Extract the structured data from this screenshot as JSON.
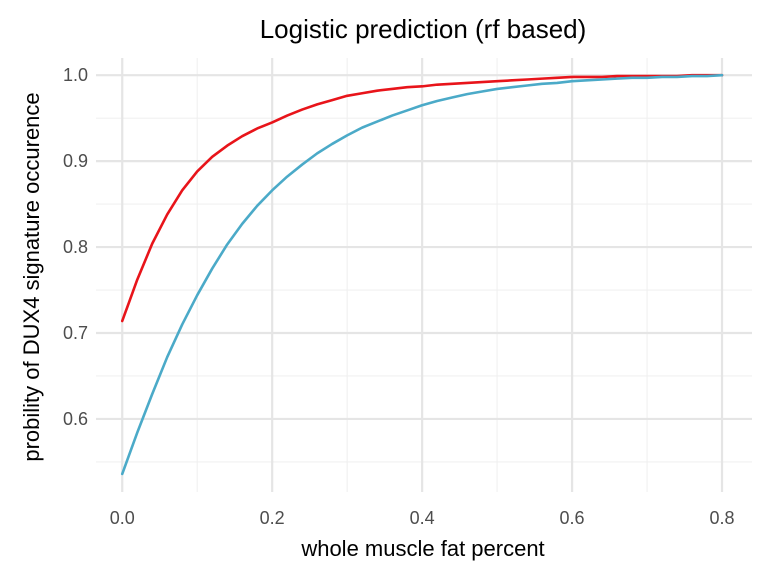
{
  "chart_data": {
    "type": "line",
    "title": "Logistic prediction (rf based)",
    "xlabel": "whole muscle fat percent",
    "ylabel": "probility of DUX4 signature occurence",
    "xlim": [
      -0.035,
      0.84
    ],
    "ylim": [
      0.515,
      1.02
    ],
    "x_ticks": [
      0.0,
      0.2,
      0.4,
      0.6,
      0.8
    ],
    "x_tick_labels": [
      "0.0",
      "0.2",
      "0.4",
      "0.6",
      "0.8"
    ],
    "y_ticks": [
      0.6,
      0.7,
      0.8,
      0.9,
      1.0
    ],
    "y_tick_labels": [
      "0.6",
      "0.7",
      "0.8",
      "0.9",
      "1.0"
    ],
    "grid": true,
    "legend": "none",
    "x": [
      0.0,
      0.02,
      0.04,
      0.06,
      0.08,
      0.1,
      0.12,
      0.14,
      0.16,
      0.18,
      0.2,
      0.22,
      0.24,
      0.26,
      0.28,
      0.3,
      0.32,
      0.34,
      0.36,
      0.38,
      0.4,
      0.42,
      0.44,
      0.46,
      0.48,
      0.5,
      0.52,
      0.54,
      0.56,
      0.58,
      0.6,
      0.62,
      0.64,
      0.66,
      0.68,
      0.7,
      0.72,
      0.74,
      0.76,
      0.78,
      0.8
    ],
    "series": [
      {
        "color": "#e8141a",
        "values": [
          0.714,
          0.762,
          0.804,
          0.838,
          0.866,
          0.888,
          0.905,
          0.918,
          0.929,
          0.938,
          0.945,
          0.953,
          0.96,
          0.966,
          0.971,
          0.976,
          0.979,
          0.982,
          0.984,
          0.986,
          0.987,
          0.989,
          0.99,
          0.991,
          0.992,
          0.993,
          0.994,
          0.995,
          0.996,
          0.997,
          0.998,
          0.998,
          0.998,
          0.999,
          0.999,
          0.999,
          0.999,
          0.999,
          1.0,
          1.0,
          1.0
        ]
      },
      {
        "color": "#4baac8",
        "values": [
          0.536,
          0.584,
          0.629,
          0.672,
          0.71,
          0.744,
          0.775,
          0.803,
          0.827,
          0.848,
          0.866,
          0.882,
          0.896,
          0.909,
          0.92,
          0.93,
          0.939,
          0.946,
          0.953,
          0.959,
          0.965,
          0.97,
          0.974,
          0.978,
          0.981,
          0.984,
          0.986,
          0.988,
          0.99,
          0.991,
          0.993,
          0.994,
          0.995,
          0.996,
          0.997,
          0.997,
          0.998,
          0.998,
          0.999,
          0.999,
          1.0
        ]
      }
    ]
  }
}
